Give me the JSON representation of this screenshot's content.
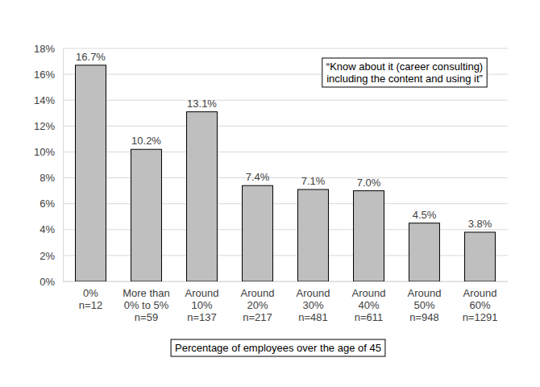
{
  "chart_data": {
    "type": "bar",
    "categories": [
      "0%\nn=12",
      "More than\n0% to 5%\nn=59",
      "Around\n10%\nn=137",
      "Around\n20%\nn=217",
      "Around\n30%\nn=481",
      "Around\n40%\nn=611",
      "Around\n50%\nn=948",
      "Around\n60%\nn=1291"
    ],
    "values": [
      16.7,
      10.2,
      13.1,
      7.4,
      7.1,
      7.0,
      4.5,
      3.8
    ],
    "value_labels": [
      "16.7%",
      "10.2%",
      "13.1%",
      "7.4%",
      "7.1%",
      "7.0%",
      "4.5%",
      "3.8%"
    ],
    "data_labels": true,
    "color": "#bfbfbf",
    "x_label": "Percentage of employees over the age of 45",
    "annotations": [
      "“Know about it (career consulting)\nincluding the content and using it”"
    ],
    "ylim": [
      0,
      18
    ],
    "yticks": [
      {
        "value": 0,
        "label": "0%"
      },
      {
        "value": 2,
        "label": "2%"
      },
      {
        "value": 4,
        "label": "4%"
      },
      {
        "value": 6,
        "label": "6%"
      },
      {
        "value": 8,
        "label": "8%"
      },
      {
        "value": 10,
        "label": "10%"
      },
      {
        "value": 12,
        "label": "12%"
      },
      {
        "value": 14,
        "label": "14%"
      },
      {
        "value": 16,
        "label": "16%"
      },
      {
        "value": 18,
        "label": "18%"
      }
    ],
    "grid": true
  }
}
